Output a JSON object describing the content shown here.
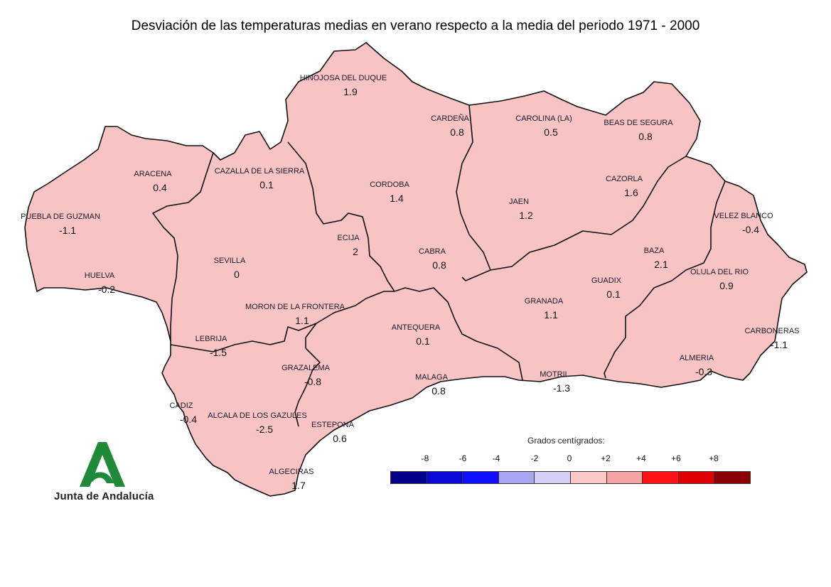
{
  "title": "Desviación de las temperaturas medias en verano respecto a la media del periodo 1971 - 2000",
  "colors": {
    "base": "#f7c2c2",
    "cool": "#cfcaf5",
    "cool_strong": "#a9a6ee",
    "warm": "#f2a6a6",
    "hot": "#ff0000",
    "cold_extreme": "#0000cc",
    "border": "#111111"
  },
  "stations": [
    {
      "name": "HINOJOSA DEL DUQUE",
      "value": "1.9"
    },
    {
      "name": "CARDEÑA",
      "value": "0.8"
    },
    {
      "name": "CAROLINA (LA)",
      "value": "0.5"
    },
    {
      "name": "BEAS DE SEGURA",
      "value": "0.8"
    },
    {
      "name": "ARACENA",
      "value": "0.4"
    },
    {
      "name": "CAZALLA DE LA SIERRA",
      "value": "0.1"
    },
    {
      "name": "CORDOBA",
      "value": "1.4"
    },
    {
      "name": "CAZORLA",
      "value": "1.6"
    },
    {
      "name": "JAEN",
      "value": "1.2"
    },
    {
      "name": "PUEBLA DE GUZMAN",
      "value": "-1.1"
    },
    {
      "name": "VELEZ BLANCO",
      "value": "-0.4"
    },
    {
      "name": "ECIJA",
      "value": "2"
    },
    {
      "name": "SEVILLA",
      "value": "0"
    },
    {
      "name": "CABRA",
      "value": "0.8"
    },
    {
      "name": "BAZA",
      "value": "2.1"
    },
    {
      "name": "HUELVA",
      "value": "-0.2"
    },
    {
      "name": "OLULA DEL RIO",
      "value": "0.9"
    },
    {
      "name": "GUADIX",
      "value": "0.1"
    },
    {
      "name": "GRANADA",
      "value": "1.1"
    },
    {
      "name": "MORON DE LA FRONTERA",
      "value": "1.1"
    },
    {
      "name": "ANTEQUERA",
      "value": "0.1"
    },
    {
      "name": "CARBONERAS",
      "value": "-1.1"
    },
    {
      "name": "LEBRIJA",
      "value": "-1.5"
    },
    {
      "name": "ALMERIA",
      "value": "-0.3"
    },
    {
      "name": "GRAZALEMA",
      "value": "-0.8"
    },
    {
      "name": "MALAGA",
      "value": "0.8"
    },
    {
      "name": "MOTRIL",
      "value": "-1.3"
    },
    {
      "name": "CADIZ",
      "value": "-0.4"
    },
    {
      "name": "ALCALA DE LOS GAZULES",
      "value": "-2.5"
    },
    {
      "name": "ESTEPONA",
      "value": "0.6"
    },
    {
      "name": "ALGECIRAS",
      "value": "1.7"
    }
  ],
  "legend": {
    "title": "Grados centígrados:",
    "ticks": [
      "-8",
      "-6",
      "-4",
      "-2",
      "0",
      "+2",
      "+4",
      "+6",
      "+8"
    ],
    "swatches": [
      "#00008b",
      "#0a0ad6",
      "#1010ff",
      "#a6a6f3",
      "#d3cff5",
      "#fbc8c8",
      "#f7a3a3",
      "#ff1414",
      "#e00000",
      "#8b0000"
    ]
  },
  "logo": {
    "text": "Junta de Andalucía"
  }
}
